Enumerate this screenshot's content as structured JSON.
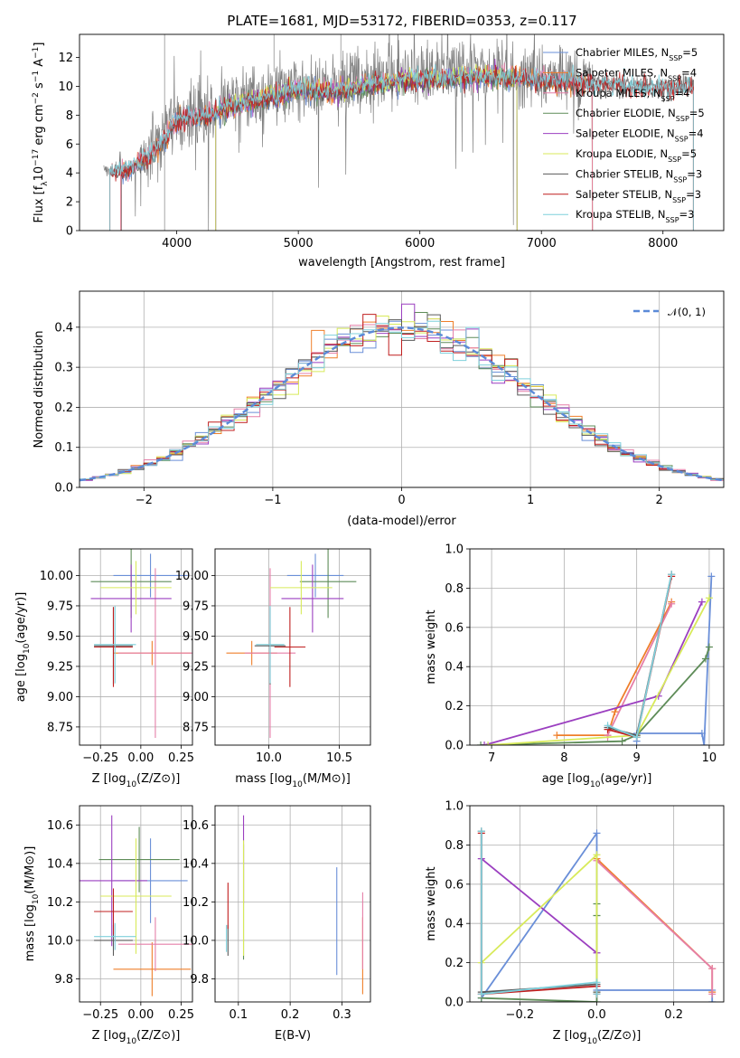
{
  "title": "PLATE=1681, MJD=53172, FIBERID=0353, z=0.117",
  "colors": {
    "chabrier_miles": "#6a8fd8",
    "salpeter_miles": "#ef7f2a",
    "kroupa_miles": "#e57fa8",
    "chabrier_elodie": "#5e8c58",
    "salpeter_elodie": "#9b3fc0",
    "kroupa_elodie": "#d8ea5a",
    "chabrier_stelib": "#5a5a5a",
    "salpeter_stelib": "#c01f1f",
    "kroupa_stelib": "#7fd0dc",
    "gaussian": "#5b8ad8",
    "grid": "#b0b0b0"
  },
  "legend_spectrum": [
    "Chabrier MILES, N_SSP=5",
    "Salpeter MILES, N_SSP=4",
    "Kroupa MILES, N_SSP=4",
    "Chabrier ELODIE, N_SSP=5",
    "Salpeter ELODIE, N_SSP=4",
    "Kroupa ELODIE, N_SSP=5",
    "Chabrier STELIB, N_SSP=3",
    "Salpeter STELIB, N_SSP=3",
    "Kroupa STELIB, N_SSP=3"
  ],
  "chart_data": [
    {
      "id": "spectrum",
      "type": "line",
      "xlabel": "wavelength [Angstrom, rest frame]",
      "ylabel": "Flux [f_λ 10^-17 erg cm^-2 s^-1 A^-1]",
      "xlim": [
        3200,
        8500
      ],
      "ylim": [
        0,
        13.6
      ],
      "xticks": [
        4000,
        5000,
        6000,
        7000,
        8000
      ],
      "yticks": [
        0,
        2,
        4,
        6,
        8,
        10,
        12
      ],
      "grid": false,
      "legend": "right",
      "data_envelope": {
        "x": [
          3400,
          3600,
          3800,
          4000,
          4200,
          4500,
          4800,
          5000,
          5300,
          5600,
          6000,
          6500,
          7000,
          7500,
          8000,
          8250
        ],
        "y": [
          4.2,
          4.3,
          5.5,
          7.8,
          8.1,
          9.0,
          9.6,
          10.1,
          9.9,
          10.4,
          10.8,
          11.0,
          10.7,
          10.4,
          10.1,
          10.3
        ]
      },
      "model_start": {
        "Chabrier MILES": 3540,
        "Salpeter MILES": 3540,
        "Kroupa MILES": 3540,
        "Chabrier ELODIE": 4320,
        "Salpeter ELODIE": 4320,
        "Kroupa ELODIE": 4320,
        "Chabrier STELIB": 3450,
        "Salpeter STELIB": 3450,
        "Kroupa STELIB": 3450
      },
      "model_end": {
        "Chabrier MILES": 7420,
        "Salpeter MILES": 7420,
        "Kroupa MILES": 7420,
        "Chabrier ELODIE": 6800,
        "Salpeter ELODIE": 6800,
        "Kroupa ELODIE": 6800,
        "Chabrier STELIB": 8250,
        "Salpeter STELIB": 8250,
        "Kroupa STELIB": 8250
      }
    },
    {
      "id": "residuals",
      "type": "area",
      "xlabel": "(data-model)/error",
      "ylabel": "Normed distribution",
      "xlim": [
        -2.5,
        2.5
      ],
      "ylim": [
        0,
        0.49
      ],
      "xticks": [
        -2,
        -1,
        0,
        1,
        2
      ],
      "yticks": [
        0.0,
        0.1,
        0.2,
        0.3,
        0.4
      ],
      "grid": true,
      "legend": "top-right",
      "legend_label": "N(0,1)",
      "bins": 50
    },
    {
      "id": "age_vs_Z",
      "type": "scatter",
      "xlabel": "Z [log10(Z/Z⊙)]",
      "ylabel": "age  [log10(age/yr)]",
      "xlim": [
        -0.38,
        0.32
      ],
      "ylim": [
        8.6,
        10.22
      ],
      "xticks": [
        -0.25,
        0.0,
        0.25
      ],
      "yticks": [
        8.75,
        9.0,
        9.25,
        9.5,
        9.75,
        10.0
      ],
      "grid": true,
      "points": [
        {
          "model": "Chabrier MILES",
          "x": 0.06,
          "xerr": 0.23,
          "y": 10.0,
          "yerr": 0.18
        },
        {
          "model": "Salpeter MILES",
          "x": 0.07,
          "xerr": 0.24,
          "y": 9.36,
          "yerr": 0.1
        },
        {
          "model": "Kroupa MILES",
          "x": 0.09,
          "xerr": 0.23,
          "y": 9.36,
          "yerr": 0.7
        },
        {
          "model": "Chabrier ELODIE",
          "x": -0.06,
          "xerr": 0.25,
          "y": 9.95,
          "yerr": 0.3
        },
        {
          "model": "Salpeter ELODIE",
          "x": -0.06,
          "xerr": 0.25,
          "y": 9.81,
          "yerr": 0.28
        },
        {
          "model": "Kroupa ELODIE",
          "x": -0.03,
          "xerr": 0.22,
          "y": 9.9,
          "yerr": 0.22
        },
        {
          "model": "Chabrier STELIB",
          "x": -0.17,
          "xerr": 0.12,
          "y": 9.42,
          "yerr": 0.32
        },
        {
          "model": "Salpeter STELIB",
          "x": -0.17,
          "xerr": 0.12,
          "y": 9.41,
          "yerr": 0.33
        },
        {
          "model": "Kroupa STELIB",
          "x": -0.16,
          "xerr": 0.13,
          "y": 9.43,
          "yerr": 0.32
        }
      ]
    },
    {
      "id": "age_vs_mass",
      "type": "scatter",
      "xlabel": "mass [log10(M/M⊙)]",
      "ylabel": "",
      "xlim": [
        9.62,
        10.72
      ],
      "ylim": [
        8.6,
        10.22
      ],
      "xticks": [
        10.0,
        10.5
      ],
      "yticks": [
        8.75,
        9.0,
        9.25,
        9.5,
        9.75,
        10.0
      ],
      "grid": true,
      "points": [
        {
          "model": "Chabrier MILES",
          "x": 10.33,
          "xerr": 0.2,
          "y": 10.0,
          "yerr": 0.18
        },
        {
          "model": "Salpeter MILES",
          "x": 9.88,
          "xerr": 0.18,
          "y": 9.36,
          "yerr": 0.1
        },
        {
          "model": "Kroupa MILES",
          "x": 10.01,
          "xerr": 0.18,
          "y": 9.36,
          "yerr": 0.7
        },
        {
          "model": "Chabrier ELODIE",
          "x": 10.42,
          "xerr": 0.2,
          "y": 9.95,
          "yerr": 0.3
        },
        {
          "model": "Salpeter ELODIE",
          "x": 10.31,
          "xerr": 0.22,
          "y": 9.81,
          "yerr": 0.28
        },
        {
          "model": "Kroupa ELODIE",
          "x": 10.23,
          "xerr": 0.22,
          "y": 9.9,
          "yerr": 0.22
        },
        {
          "model": "Chabrier STELIB",
          "x": 10.01,
          "xerr": 0.11,
          "y": 9.42,
          "yerr": 0.32
        },
        {
          "model": "Salpeter STELIB",
          "x": 10.15,
          "xerr": 0.11,
          "y": 9.41,
          "yerr": 0.33
        },
        {
          "model": "Kroupa STELIB",
          "x": 10.01,
          "xerr": 0.1,
          "y": 9.43,
          "yerr": 0.32
        }
      ]
    },
    {
      "id": "weight_vs_age",
      "type": "line",
      "xlabel": "age  [log10(age/yr)]",
      "ylabel": "mass weight",
      "xlim": [
        6.7,
        10.2
      ],
      "ylim": [
        0,
        1.0
      ],
      "xticks": [
        7,
        8,
        9,
        10
      ],
      "yticks": [
        0.0,
        0.2,
        0.4,
        0.6,
        0.8,
        1.0
      ],
      "grid": true,
      "series": [
        {
          "model": "Chabrier MILES",
          "x": [
            9.0,
            9.0,
            9.9,
            9.93,
            10.03
          ],
          "y": [
            0.02,
            0.06,
            0.06,
            0.0,
            0.86
          ]
        },
        {
          "model": "Salpeter MILES",
          "x": [
            7.9,
            8.6,
            8.7,
            9.48
          ],
          "y": [
            0.05,
            0.05,
            0.17,
            0.73
          ]
        },
        {
          "model": "Kroupa MILES",
          "x": [
            8.6,
            8.6,
            9.48
          ],
          "y": [
            0.04,
            0.05,
            0.72
          ]
        },
        {
          "model": "Chabrier ELODIE",
          "x": [
            6.85,
            8.8,
            9.0,
            9.95,
            10.0
          ],
          "y": [
            0.0,
            0.02,
            0.05,
            0.44,
            0.5
          ]
        },
        {
          "model": "Salpeter ELODIE",
          "x": [
            6.9,
            9.3,
            9.9
          ],
          "y": [
            0.0,
            0.25,
            0.73
          ]
        },
        {
          "model": "Kroupa ELODIE",
          "x": [
            6.95,
            9.0,
            10.0
          ],
          "y": [
            0.0,
            0.05,
            0.75
          ]
        },
        {
          "model": "Chabrier STELIB",
          "x": [
            8.6,
            9.0,
            9.48
          ],
          "y": [
            0.09,
            0.05,
            0.87
          ]
        },
        {
          "model": "Salpeter STELIB",
          "x": [
            8.6,
            9.0,
            9.48
          ],
          "y": [
            0.08,
            0.04,
            0.86
          ]
        },
        {
          "model": "Kroupa STELIB",
          "x": [
            8.6,
            9.0,
            9.48
          ],
          "y": [
            0.1,
            0.04,
            0.87
          ]
        }
      ]
    },
    {
      "id": "mass_vs_Z",
      "type": "scatter",
      "xlabel": "Z [log10(Z/Z⊙)]",
      "ylabel": "mass [log10(M/M⊙)]",
      "xlim": [
        -0.38,
        0.32
      ],
      "ylim": [
        9.68,
        10.7
      ],
      "xticks": [
        -0.25,
        0.0,
        0.25
      ],
      "yticks": [
        9.8,
        10.0,
        10.2,
        10.4,
        10.6
      ],
      "grid": true,
      "points": [
        {
          "model": "Chabrier MILES",
          "x": 0.06,
          "xerr": 0.23,
          "y": 10.31,
          "yerr": 0.22
        },
        {
          "model": "Salpeter MILES",
          "x": 0.07,
          "xerr": 0.24,
          "y": 9.85,
          "yerr": 0.14
        },
        {
          "model": "Kroupa MILES",
          "x": 0.09,
          "xerr": 0.23,
          "y": 9.98,
          "yerr": 0.14
        },
        {
          "model": "Chabrier ELODIE",
          "x": -0.01,
          "xerr": 0.25,
          "y": 10.42,
          "yerr": 0.17
        },
        {
          "model": "Salpeter ELODIE",
          "x": -0.18,
          "xerr": 0.22,
          "y": 10.31,
          "yerr": 0.34
        },
        {
          "model": "Kroupa ELODIE",
          "x": -0.03,
          "xerr": 0.22,
          "y": 10.23,
          "yerr": 0.3
        },
        {
          "model": "Chabrier STELIB",
          "x": -0.17,
          "xerr": 0.12,
          "y": 10.0,
          "yerr": 0.08
        },
        {
          "model": "Salpeter STELIB",
          "x": -0.17,
          "xerr": 0.12,
          "y": 10.15,
          "yerr": 0.12
        },
        {
          "model": "Kroupa STELIB",
          "x": -0.16,
          "xerr": 0.13,
          "y": 10.02,
          "yerr": 0.07
        }
      ]
    },
    {
      "id": "mass_vs_ebv",
      "type": "scatter",
      "xlabel": "E(B-V)",
      "ylabel": "",
      "xlim": [
        0.055,
        0.355
      ],
      "ylim": [
        9.68,
        10.7
      ],
      "xticks": [
        0.1,
        0.2,
        0.3
      ],
      "yticks": [
        9.8,
        10.0,
        10.2,
        10.4,
        10.6
      ],
      "grid": true,
      "points": [
        {
          "model": "Chabrier MILES",
          "x": 0.29,
          "y": 10.1,
          "yerr": 0.28
        },
        {
          "model": "Salpeter MILES",
          "x": 0.34,
          "y": 9.92,
          "yerr": 0.2
        },
        {
          "model": "Kroupa MILES",
          "x": 0.34,
          "y": 10.05,
          "yerr": 0.2
        },
        {
          "model": "Chabrier ELODIE",
          "x": 0.11,
          "y": 10.2,
          "yerr": 0.3
        },
        {
          "model": "Salpeter ELODIE",
          "x": 0.11,
          "y": 10.42,
          "yerr": 0.23
        },
        {
          "model": "Kroupa ELODIE",
          "x": 0.11,
          "y": 10.22,
          "yerr": 0.3
        },
        {
          "model": "Chabrier STELIB",
          "x": 0.08,
          "y": 10.0,
          "yerr": 0.08
        },
        {
          "model": "Salpeter STELIB",
          "x": 0.08,
          "y": 10.18,
          "yerr": 0.12
        },
        {
          "model": "Kroupa STELIB",
          "x": 0.077,
          "y": 10.01,
          "yerr": 0.07
        }
      ]
    },
    {
      "id": "weight_vs_Z",
      "type": "line",
      "xlabel": "Z [log10(Z/Z⊙)]",
      "ylabel": "mass weight",
      "xlim": [
        -0.33,
        0.33
      ],
      "ylim": [
        0,
        1.0
      ],
      "xticks": [
        -0.2,
        0.0,
        0.2
      ],
      "yticks": [
        0.0,
        0.2,
        0.4,
        0.6,
        0.8,
        1.0
      ],
      "grid": true,
      "series": [
        {
          "model": "Chabrier MILES",
          "x": [
            -0.3,
            0.0,
            0.0,
            0.3,
            0.3
          ],
          "y": [
            0.02,
            0.86,
            0.06,
            0.06,
            0.0
          ]
        },
        {
          "model": "Salpeter MILES",
          "x": [
            0.0,
            0.3,
            0.3
          ],
          "y": [
            0.73,
            0.17,
            0.05
          ]
        },
        {
          "model": "Kroupa MILES",
          "x": [
            0.0,
            0.3,
            0.3
          ],
          "y": [
            0.72,
            0.17,
            0.04
          ]
        },
        {
          "model": "Chabrier ELODIE",
          "x": [
            -0.3,
            0.0,
            0.0,
            0.0
          ],
          "y": [
            0.02,
            0.0,
            0.5,
            0.44
          ]
        },
        {
          "model": "Salpeter ELODIE",
          "x": [
            -0.3,
            0.0
          ],
          "y": [
            0.73,
            0.25
          ]
        },
        {
          "model": "Kroupa ELODIE",
          "x": [
            -0.3,
            0.0,
            0.0
          ],
          "y": [
            0.2,
            0.75,
            0.05
          ]
        },
        {
          "model": "Chabrier STELIB",
          "x": [
            -0.3,
            -0.3,
            0.0,
            0.0
          ],
          "y": [
            0.87,
            0.05,
            0.09,
            0.05
          ]
        },
        {
          "model": "Salpeter STELIB",
          "x": [
            -0.3,
            -0.3,
            0.0,
            0.0
          ],
          "y": [
            0.86,
            0.04,
            0.08,
            0.04
          ]
        },
        {
          "model": "Kroupa STELIB",
          "x": [
            -0.3,
            -0.3,
            0.0,
            0.0
          ],
          "y": [
            0.87,
            0.04,
            0.1,
            0.04
          ]
        }
      ]
    }
  ]
}
